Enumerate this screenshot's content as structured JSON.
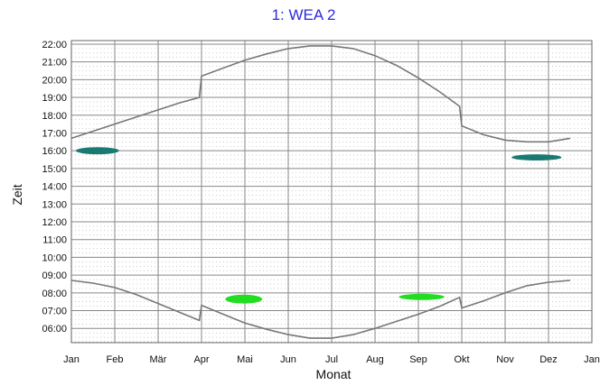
{
  "chart_data": {
    "type": "line",
    "title": "1: WEA 2",
    "xlabel": "Monat",
    "ylabel": "Zeit",
    "x_tick_labels": [
      "Jan",
      "Feb",
      "Mär",
      "Apr",
      "Mai",
      "Jun",
      "Jul",
      "Aug",
      "Sep",
      "Okt",
      "Nov",
      "Dez",
      "Jan"
    ],
    "y_tick_labels": [
      "06:00",
      "07:00",
      "08:00",
      "09:00",
      "10:00",
      "11:00",
      "12:00",
      "13:00",
      "14:00",
      "15:00",
      "16:00",
      "17:00",
      "18:00",
      "19:00",
      "20:00",
      "21:00",
      "22:00"
    ],
    "xlim": [
      0,
      12
    ],
    "ylim": [
      5.2,
      22.2
    ],
    "grid": true,
    "colors": {
      "title": "#2b2bd9",
      "curve": "#777777",
      "grid": "#888888",
      "afternoon_zone": "#1a7a72",
      "morning_zone": "#22dd22"
    },
    "series": [
      {
        "role": "sunset",
        "color": "#777777",
        "points": [
          [
            0,
            16.7
          ],
          [
            0.5,
            17.1
          ],
          [
            1,
            17.5
          ],
          [
            1.5,
            17.9
          ],
          [
            2,
            18.3
          ],
          [
            2.5,
            18.7
          ],
          [
            2.95,
            19.0
          ],
          [
            3.0,
            20.2
          ],
          [
            3.5,
            20.65
          ],
          [
            4,
            21.1
          ],
          [
            4.5,
            21.45
          ],
          [
            5,
            21.75
          ],
          [
            5.5,
            21.9
          ],
          [
            6,
            21.9
          ],
          [
            6.5,
            21.75
          ],
          [
            7,
            21.35
          ],
          [
            7.5,
            20.8
          ],
          [
            8,
            20.1
          ],
          [
            8.5,
            19.3
          ],
          [
            8.95,
            18.5
          ],
          [
            9.0,
            17.4
          ],
          [
            9.5,
            16.9
          ],
          [
            10,
            16.6
          ],
          [
            10.5,
            16.5
          ],
          [
            11,
            16.5
          ],
          [
            11.5,
            16.7
          ]
        ]
      },
      {
        "role": "sunrise",
        "color": "#777777",
        "points": [
          [
            0,
            8.7
          ],
          [
            0.5,
            8.55
          ],
          [
            1,
            8.3
          ],
          [
            1.5,
            7.9
          ],
          [
            2,
            7.4
          ],
          [
            2.5,
            6.9
          ],
          [
            2.95,
            6.45
          ],
          [
            3.0,
            7.3
          ],
          [
            3.5,
            6.8
          ],
          [
            4,
            6.3
          ],
          [
            4.5,
            5.95
          ],
          [
            5,
            5.65
          ],
          [
            5.5,
            5.45
          ],
          [
            6,
            5.45
          ],
          [
            6.5,
            5.65
          ],
          [
            7,
            6.0
          ],
          [
            7.5,
            6.4
          ],
          [
            8,
            6.8
          ],
          [
            8.5,
            7.25
          ],
          [
            8.95,
            7.75
          ],
          [
            9.0,
            7.15
          ],
          [
            9.5,
            7.55
          ],
          [
            10,
            8.0
          ],
          [
            10.5,
            8.4
          ],
          [
            11,
            8.6
          ],
          [
            11.5,
            8.7
          ]
        ]
      }
    ],
    "zones": [
      {
        "color": "#1a7a72",
        "x": [
          0.1,
          1.1
        ],
        "y": [
          15.8,
          16.2
        ]
      },
      {
        "color": "#1a7a72",
        "x": [
          10.15,
          11.3
        ],
        "y": [
          15.45,
          15.8
        ]
      },
      {
        "color": "#22dd22",
        "x": [
          3.55,
          4.4
        ],
        "y": [
          7.4,
          7.9
        ]
      },
      {
        "color": "#22dd22",
        "x": [
          7.55,
          8.6
        ],
        "y": [
          7.6,
          7.95
        ]
      }
    ]
  }
}
